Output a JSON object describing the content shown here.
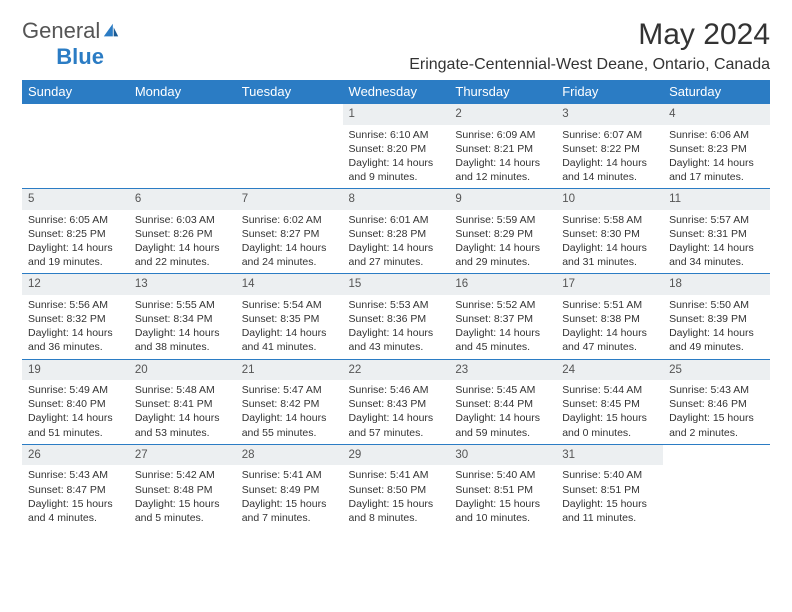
{
  "logo": {
    "text1": "General",
    "text2": "Blue"
  },
  "title": "May 2024",
  "location": "Eringate-Centennial-West Deane, Ontario, Canada",
  "colors": {
    "header_bg": "#2b7cc4",
    "header_fg": "#ffffff",
    "daynum_bg": "#eceff1",
    "border": "#2b7cc4",
    "text": "#333333",
    "logo_gray": "#555555",
    "logo_blue": "#2b7cc4",
    "background": "#ffffff"
  },
  "daynames": [
    "Sunday",
    "Monday",
    "Tuesday",
    "Wednesday",
    "Thursday",
    "Friday",
    "Saturday"
  ],
  "weeks": [
    [
      null,
      null,
      null,
      {
        "n": "1",
        "sunrise": "Sunrise: 6:10 AM",
        "sunset": "Sunset: 8:20 PM",
        "daylight": "Daylight: 14 hours and 9 minutes."
      },
      {
        "n": "2",
        "sunrise": "Sunrise: 6:09 AM",
        "sunset": "Sunset: 8:21 PM",
        "daylight": "Daylight: 14 hours and 12 minutes."
      },
      {
        "n": "3",
        "sunrise": "Sunrise: 6:07 AM",
        "sunset": "Sunset: 8:22 PM",
        "daylight": "Daylight: 14 hours and 14 minutes."
      },
      {
        "n": "4",
        "sunrise": "Sunrise: 6:06 AM",
        "sunset": "Sunset: 8:23 PM",
        "daylight": "Daylight: 14 hours and 17 minutes."
      }
    ],
    [
      {
        "n": "5",
        "sunrise": "Sunrise: 6:05 AM",
        "sunset": "Sunset: 8:25 PM",
        "daylight": "Daylight: 14 hours and 19 minutes."
      },
      {
        "n": "6",
        "sunrise": "Sunrise: 6:03 AM",
        "sunset": "Sunset: 8:26 PM",
        "daylight": "Daylight: 14 hours and 22 minutes."
      },
      {
        "n": "7",
        "sunrise": "Sunrise: 6:02 AM",
        "sunset": "Sunset: 8:27 PM",
        "daylight": "Daylight: 14 hours and 24 minutes."
      },
      {
        "n": "8",
        "sunrise": "Sunrise: 6:01 AM",
        "sunset": "Sunset: 8:28 PM",
        "daylight": "Daylight: 14 hours and 27 minutes."
      },
      {
        "n": "9",
        "sunrise": "Sunrise: 5:59 AM",
        "sunset": "Sunset: 8:29 PM",
        "daylight": "Daylight: 14 hours and 29 minutes."
      },
      {
        "n": "10",
        "sunrise": "Sunrise: 5:58 AM",
        "sunset": "Sunset: 8:30 PM",
        "daylight": "Daylight: 14 hours and 31 minutes."
      },
      {
        "n": "11",
        "sunrise": "Sunrise: 5:57 AM",
        "sunset": "Sunset: 8:31 PM",
        "daylight": "Daylight: 14 hours and 34 minutes."
      }
    ],
    [
      {
        "n": "12",
        "sunrise": "Sunrise: 5:56 AM",
        "sunset": "Sunset: 8:32 PM",
        "daylight": "Daylight: 14 hours and 36 minutes."
      },
      {
        "n": "13",
        "sunrise": "Sunrise: 5:55 AM",
        "sunset": "Sunset: 8:34 PM",
        "daylight": "Daylight: 14 hours and 38 minutes."
      },
      {
        "n": "14",
        "sunrise": "Sunrise: 5:54 AM",
        "sunset": "Sunset: 8:35 PM",
        "daylight": "Daylight: 14 hours and 41 minutes."
      },
      {
        "n": "15",
        "sunrise": "Sunrise: 5:53 AM",
        "sunset": "Sunset: 8:36 PM",
        "daylight": "Daylight: 14 hours and 43 minutes."
      },
      {
        "n": "16",
        "sunrise": "Sunrise: 5:52 AM",
        "sunset": "Sunset: 8:37 PM",
        "daylight": "Daylight: 14 hours and 45 minutes."
      },
      {
        "n": "17",
        "sunrise": "Sunrise: 5:51 AM",
        "sunset": "Sunset: 8:38 PM",
        "daylight": "Daylight: 14 hours and 47 minutes."
      },
      {
        "n": "18",
        "sunrise": "Sunrise: 5:50 AM",
        "sunset": "Sunset: 8:39 PM",
        "daylight": "Daylight: 14 hours and 49 minutes."
      }
    ],
    [
      {
        "n": "19",
        "sunrise": "Sunrise: 5:49 AM",
        "sunset": "Sunset: 8:40 PM",
        "daylight": "Daylight: 14 hours and 51 minutes."
      },
      {
        "n": "20",
        "sunrise": "Sunrise: 5:48 AM",
        "sunset": "Sunset: 8:41 PM",
        "daylight": "Daylight: 14 hours and 53 minutes."
      },
      {
        "n": "21",
        "sunrise": "Sunrise: 5:47 AM",
        "sunset": "Sunset: 8:42 PM",
        "daylight": "Daylight: 14 hours and 55 minutes."
      },
      {
        "n": "22",
        "sunrise": "Sunrise: 5:46 AM",
        "sunset": "Sunset: 8:43 PM",
        "daylight": "Daylight: 14 hours and 57 minutes."
      },
      {
        "n": "23",
        "sunrise": "Sunrise: 5:45 AM",
        "sunset": "Sunset: 8:44 PM",
        "daylight": "Daylight: 14 hours and 59 minutes."
      },
      {
        "n": "24",
        "sunrise": "Sunrise: 5:44 AM",
        "sunset": "Sunset: 8:45 PM",
        "daylight": "Daylight: 15 hours and 0 minutes."
      },
      {
        "n": "25",
        "sunrise": "Sunrise: 5:43 AM",
        "sunset": "Sunset: 8:46 PM",
        "daylight": "Daylight: 15 hours and 2 minutes."
      }
    ],
    [
      {
        "n": "26",
        "sunrise": "Sunrise: 5:43 AM",
        "sunset": "Sunset: 8:47 PM",
        "daylight": "Daylight: 15 hours and 4 minutes."
      },
      {
        "n": "27",
        "sunrise": "Sunrise: 5:42 AM",
        "sunset": "Sunset: 8:48 PM",
        "daylight": "Daylight: 15 hours and 5 minutes."
      },
      {
        "n": "28",
        "sunrise": "Sunrise: 5:41 AM",
        "sunset": "Sunset: 8:49 PM",
        "daylight": "Daylight: 15 hours and 7 minutes."
      },
      {
        "n": "29",
        "sunrise": "Sunrise: 5:41 AM",
        "sunset": "Sunset: 8:50 PM",
        "daylight": "Daylight: 15 hours and 8 minutes."
      },
      {
        "n": "30",
        "sunrise": "Sunrise: 5:40 AM",
        "sunset": "Sunset: 8:51 PM",
        "daylight": "Daylight: 15 hours and 10 minutes."
      },
      {
        "n": "31",
        "sunrise": "Sunrise: 5:40 AM",
        "sunset": "Sunset: 8:51 PM",
        "daylight": "Daylight: 15 hours and 11 minutes."
      },
      null
    ]
  ]
}
